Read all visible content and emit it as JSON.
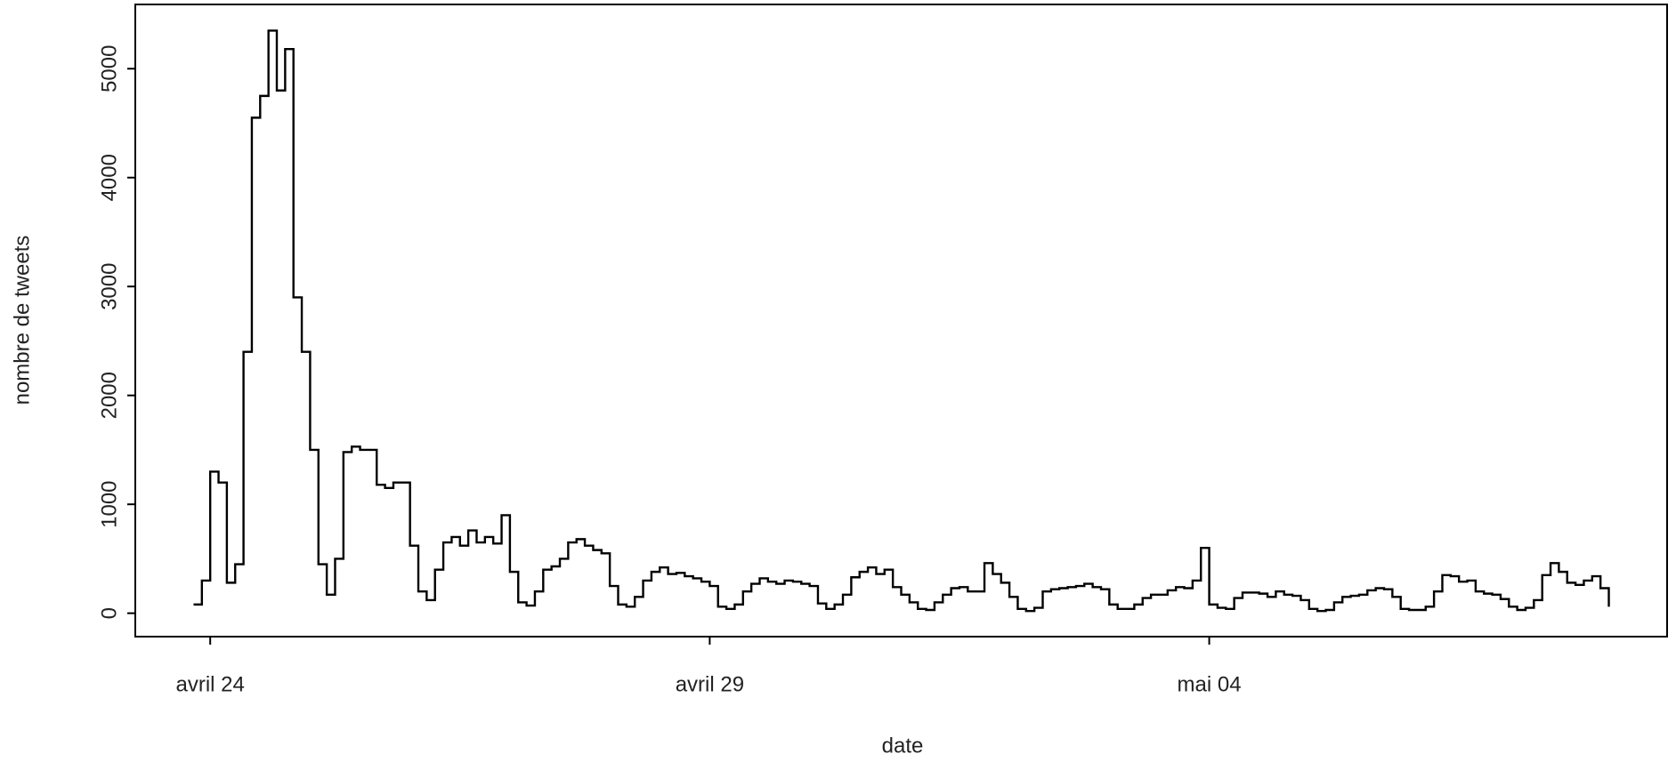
{
  "chart_data": {
    "type": "step",
    "x_label": "date",
    "y_label": "nombre de tweets",
    "xlim": [
      -18,
      350
    ],
    "ylim": [
      -215,
      5590
    ],
    "xticks": [
      {
        "value": 0,
        "label": "avril 24"
      },
      {
        "value": 120,
        "label": "avril 29"
      },
      {
        "value": 240,
        "label": "mai 04"
      }
    ],
    "yticks": [
      0,
      1000,
      2000,
      3000,
      4000,
      5000
    ],
    "color": "#000000",
    "x": [
      -4,
      -2,
      0,
      2,
      4,
      6,
      8,
      10,
      12,
      14,
      16,
      18,
      20,
      22,
      24,
      26,
      28,
      30,
      32,
      34,
      36,
      38,
      40,
      42,
      44,
      46,
      48,
      50,
      52,
      54,
      56,
      58,
      60,
      62,
      64,
      66,
      68,
      70,
      72,
      74,
      76,
      78,
      80,
      82,
      84,
      86,
      88,
      90,
      92,
      94,
      96,
      98,
      100,
      102,
      104,
      106,
      108,
      110,
      112,
      114,
      116,
      118,
      120,
      122,
      124,
      126,
      128,
      130,
      132,
      134,
      136,
      138,
      140,
      142,
      144,
      146,
      148,
      150,
      152,
      154,
      156,
      158,
      160,
      162,
      164,
      166,
      168,
      170,
      172,
      174,
      176,
      178,
      180,
      182,
      184,
      186,
      188,
      190,
      192,
      194,
      196,
      198,
      200,
      202,
      204,
      206,
      208,
      210,
      212,
      214,
      216,
      218,
      220,
      222,
      224,
      226,
      228,
      230,
      232,
      234,
      236,
      238,
      240,
      242,
      244,
      246,
      248,
      250,
      252,
      254,
      256,
      258,
      260,
      262,
      264,
      266,
      268,
      270,
      272,
      274,
      276,
      278,
      280,
      282,
      284,
      286,
      288,
      290,
      292,
      294,
      296,
      298,
      300,
      302,
      304,
      306,
      308,
      310,
      312,
      314,
      316,
      318,
      320,
      322,
      324,
      326,
      328,
      330,
      332,
      334,
      336
    ],
    "values": [
      80,
      300,
      1300,
      1200,
      280,
      450,
      2400,
      4550,
      4750,
      5350,
      4800,
      5180,
      2900,
      2400,
      1500,
      450,
      170,
      500,
      1480,
      1530,
      1500,
      1500,
      1180,
      1150,
      1200,
      1200,
      620,
      200,
      120,
      400,
      650,
      700,
      620,
      760,
      650,
      700,
      640,
      900,
      380,
      100,
      70,
      200,
      400,
      430,
      500,
      650,
      680,
      620,
      580,
      550,
      250,
      80,
      60,
      150,
      300,
      380,
      420,
      360,
      370,
      340,
      320,
      290,
      250,
      60,
      40,
      80,
      200,
      270,
      320,
      290,
      270,
      300,
      290,
      270,
      250,
      90,
      40,
      80,
      170,
      330,
      380,
      420,
      360,
      400,
      240,
      170,
      100,
      40,
      30,
      100,
      170,
      230,
      240,
      200,
      200,
      460,
      360,
      280,
      150,
      40,
      20,
      50,
      200,
      220,
      230,
      240,
      250,
      270,
      240,
      220,
      80,
      40,
      40,
      80,
      140,
      170,
      170,
      210,
      240,
      230,
      300,
      600,
      80,
      50,
      40,
      140,
      190,
      190,
      180,
      150,
      200,
      170,
      160,
      120,
      40,
      20,
      30,
      100,
      150,
      160,
      170,
      210,
      230,
      220,
      150,
      40,
      30,
      30,
      60,
      200,
      350,
      340,
      290,
      300,
      200,
      180,
      170,
      130,
      60,
      30,
      50,
      120,
      350,
      460,
      380,
      280,
      260,
      300,
      340,
      230,
      60
    ]
  }
}
